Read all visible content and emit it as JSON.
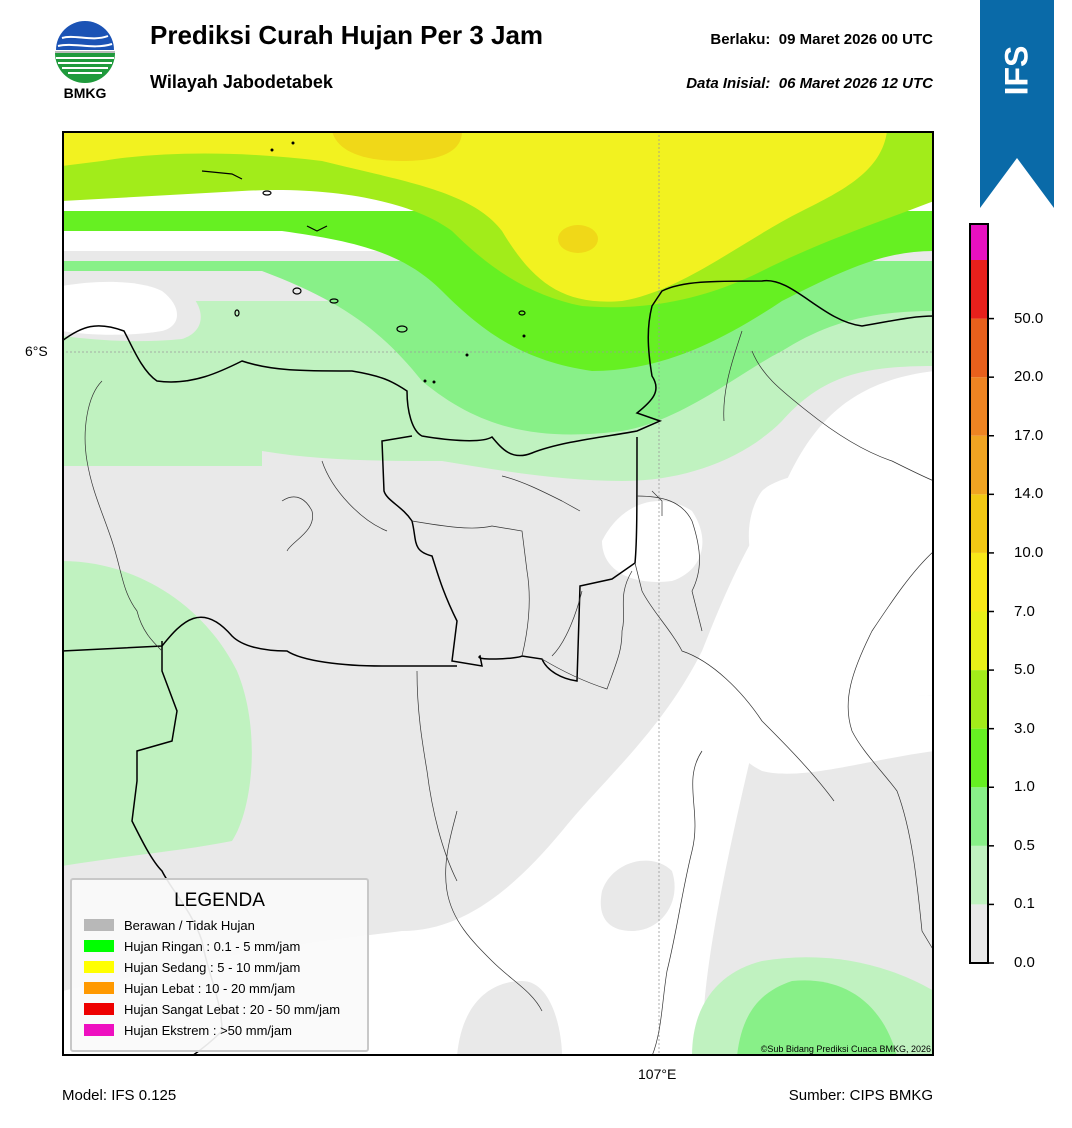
{
  "header": {
    "title": "Prediksi Curah Hujan Per 3 Jam",
    "subtitle": "Wilayah Jabodetabek",
    "valid_label": "Berlaku:",
    "valid_value": "09 Maret 2026 00 UTC",
    "init_label": "Data Inisial:",
    "init_value": "06 Maret 2026 12 UTC",
    "logo_text": "BMKG"
  },
  "badge": {
    "text": "IFS",
    "color": "#0a6aa8"
  },
  "map": {
    "lat_label": "6°S",
    "lon_label": "107°E",
    "copyright": "©Sub Bidang Prediksi Cuaca BMKG, 2026"
  },
  "footer": {
    "model": "Model: IFS 0.125",
    "source": "Sumber: CIPS BMKG"
  },
  "colorbar": {
    "labels": [
      "0.0",
      "0.1",
      "0.5",
      "1.0",
      "3.0",
      "5.0",
      "7.0",
      "10.0",
      "14.0",
      "17.0",
      "20.0",
      "50.0"
    ],
    "colors": [
      "#e9e9e9",
      "#c0f2c0",
      "#88f088",
      "#66f022",
      "#a2ec1a",
      "#e8f018",
      "#f8e818",
      "#f2c814",
      "#f0a422",
      "#ee8422",
      "#e8601c",
      "#e8201c",
      "#e810c0"
    ]
  },
  "legend": {
    "title": "LEGENDA",
    "items": [
      {
        "label": "Berawan / Tidak Hujan",
        "color": "#b8b8b8"
      },
      {
        "label": "Hujan Ringan : 0.1 - 5 mm/jam",
        "color": "#00ff00"
      },
      {
        "label": "Hujan Sedang : 5 - 10 mm/jam",
        "color": "#ffff00"
      },
      {
        "label": "Hujan Lebat : 10 - 20 mm/jam",
        "color": "#ff9900"
      },
      {
        "label": "Hujan Sangat Lebat : 20 - 50 mm/jam",
        "color": "#ee0000"
      },
      {
        "label": "Hujan Ekstrem : >50 mm/jam",
        "color": "#ee10c0"
      }
    ]
  }
}
